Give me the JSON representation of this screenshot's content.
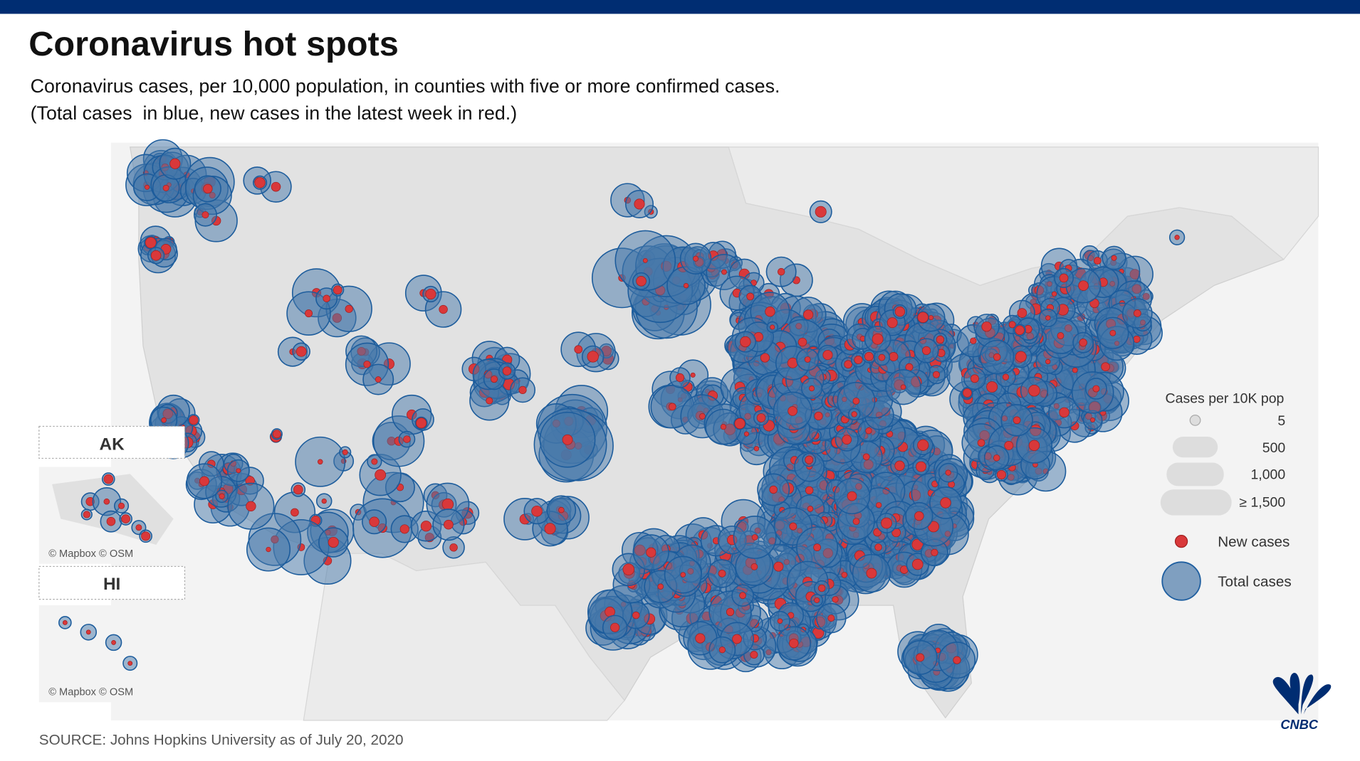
{
  "header": {
    "title": "Coronavirus hot spots",
    "subtitle": [
      "Coronavirus cases, per 10,000 population, in counties with five or more confirmed cases.",
      "(Total cases  in blue, new cases in the latest week in red.)"
    ]
  },
  "legend": {
    "title": "Cases per 10K pop",
    "sizes": [
      "5",
      "500",
      "1,000",
      "≥ 1,500"
    ],
    "items": [
      "New cases",
      "Total cases"
    ]
  },
  "insets": [
    {
      "label": "AK",
      "attribution": "© Mapbox © OSM"
    },
    {
      "label": "HI",
      "attribution": "© Mapbox © OSM"
    }
  ],
  "source": "SOURCE: Johns Hopkins University as of July 20, 2020",
  "logo": "CNBC"
}
